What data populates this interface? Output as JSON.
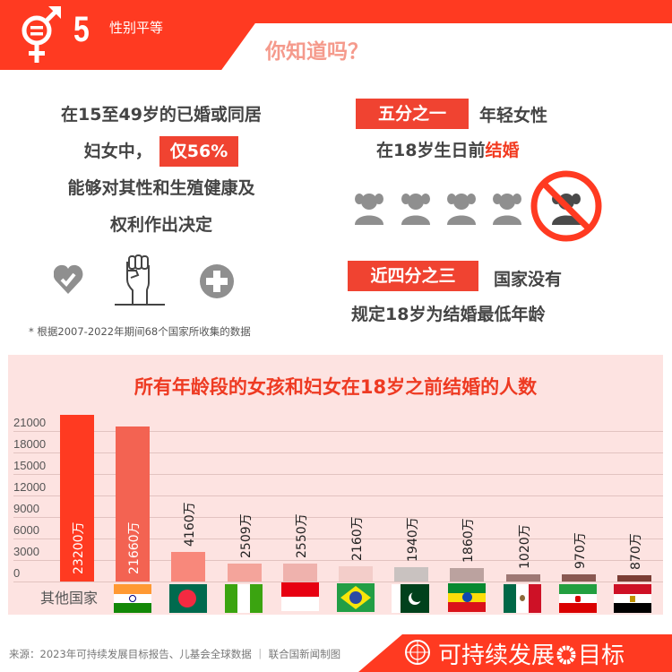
{
  "header": {
    "goal_number": "5",
    "goal_name": "性别平等",
    "section_title": "你知道吗？",
    "brand_color": "#ff3a21"
  },
  "fact_left": {
    "line1": "在15至49岁的已婚或同居",
    "line2_prefix": "妇女中，",
    "highlight": "仅56%",
    "line3": "能够对其性和生殖健康及",
    "line4": "权利作出决定",
    "icons": [
      "heart-check-icon",
      "raised-fist-icon",
      "medical-plus-icon"
    ],
    "footnote": "* 根据2007-2022年期间68个国家所收集的数据"
  },
  "fact_right_1": {
    "badge": "五分之一",
    "text_after_badge": "年轻女性",
    "line2_prefix": "在18岁生日前",
    "line2_highlight": "结婚",
    "icons": [
      "girl-icon",
      "girl-icon",
      "girl-icon",
      "girl-icon",
      "prohibited-girl-icon"
    ]
  },
  "fact_right_2": {
    "badge": "近四分之三",
    "text_after_badge": "国家没有",
    "line2": "规定18岁为结婚最低年龄"
  },
  "chart_data": {
    "type": "bar",
    "title": "所有年龄段的女孩和妇女在18岁之前结婚的人数",
    "xlabel": "",
    "ylabel": "",
    "unit": "万",
    "ylim": [
      0,
      22000
    ],
    "yticks": [
      "21000",
      "18000",
      "15000",
      "12000",
      "9000",
      "6000",
      "3000",
      "0"
    ],
    "grid": true,
    "categories": [
      "其他国家",
      "India",
      "Bangladesh",
      "Nigeria",
      "Indonesia",
      "Brazil",
      "Pakistan",
      "Ethiopia",
      "Mexico",
      "Iran",
      "Egypt"
    ],
    "values": [
      23200,
      21660,
      4160,
      2509,
      2550,
      2160,
      1940,
      1860,
      1020,
      970,
      870
    ],
    "labels": [
      "23200万",
      "21660万",
      "4160万",
      "2509万",
      "2550万",
      "2160万",
      "1940万",
      "1860万",
      "1020万",
      "970万",
      "870万"
    ],
    "colors": [
      "#ff3a21",
      "#f36352",
      "#f8887b",
      "#f4a49b",
      "#efb2ad",
      "#f3cdc9",
      "#c9c2c0",
      "#bba29f",
      "#9e7874",
      "#895851",
      "#7b3d34"
    ],
    "first_category_label": "其他国家"
  },
  "footer": {
    "source": "来源：2023年可持续发展目标报告、儿基会全球数据 ｜ 联合国新闻制图",
    "brand_prefix": "可持续发展",
    "brand_suffix": "目标"
  }
}
